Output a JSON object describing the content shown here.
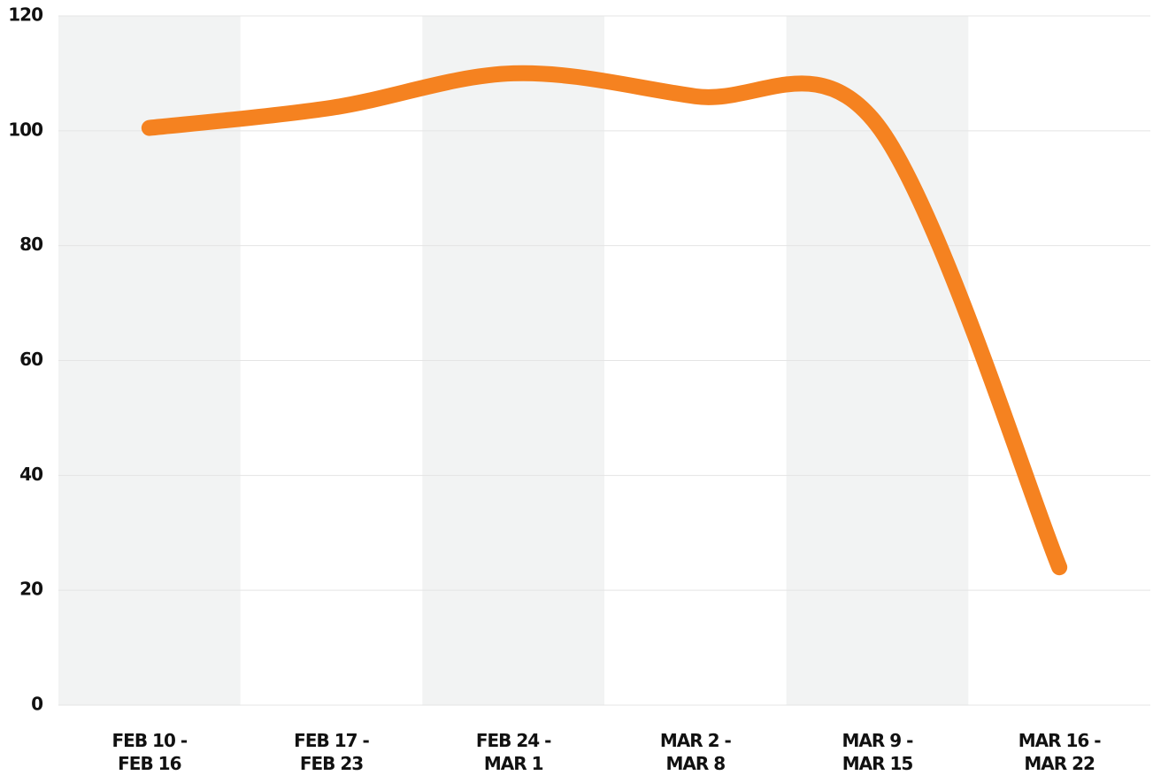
{
  "chart_data": {
    "type": "line",
    "categories": [
      [
        "FEB 10 -",
        "FEB 16"
      ],
      [
        "FEB 17 -",
        "FEB 23"
      ],
      [
        "FEB 24 -",
        "MAR 1"
      ],
      [
        "MAR 2 -",
        "MAR 8"
      ],
      [
        "MAR 9 -",
        "MAR 15"
      ],
      [
        "MAR 16 -",
        "MAR 22"
      ]
    ],
    "series": [
      {
        "color": "#f58220",
        "values": [
          100.5,
          104,
          110,
          106,
          101,
          24
        ]
      }
    ],
    "ylim": [
      0,
      120
    ],
    "yticks": [
      0,
      20,
      40,
      60,
      80,
      100,
      120
    ],
    "grid": true,
    "band_color": "#f2f3f3"
  }
}
